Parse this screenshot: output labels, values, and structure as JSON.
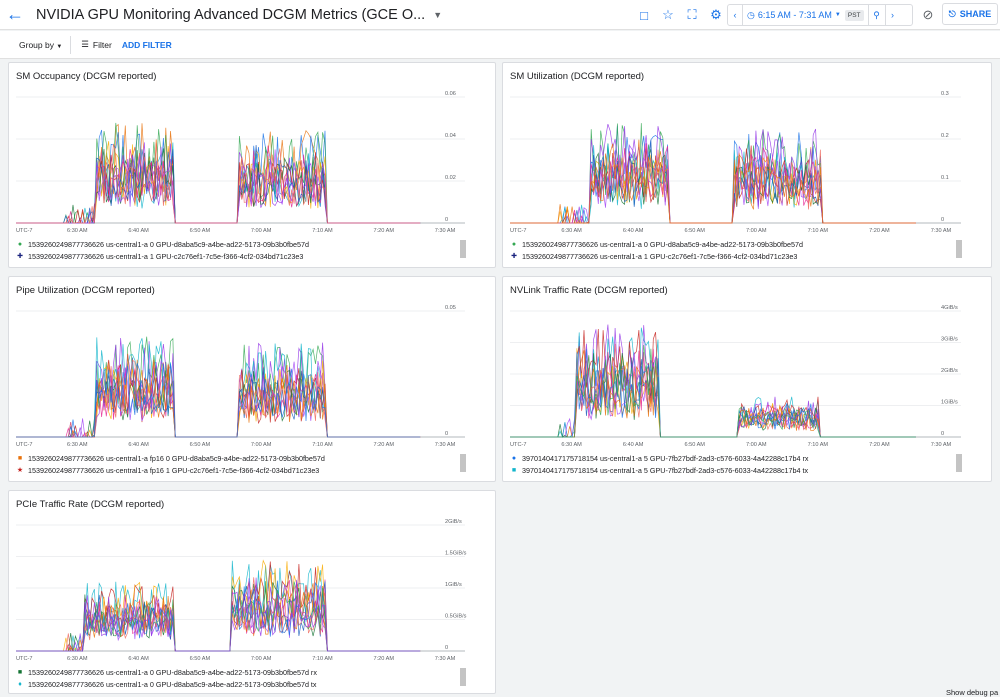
{
  "header": {
    "title": "NVIDIA GPU Monitoring Advanced DCGM Metrics (GCE O...",
    "time_range": "6:15 AM - 7:31 AM",
    "timezone": "PST",
    "share_label": "SHARE",
    "icons": [
      "arrow-back-icon",
      "comment-icon",
      "star-icon",
      "fullscreen-icon",
      "gear-icon",
      "chevron-left-icon",
      "clock-icon",
      "zoom-icon",
      "chevron-right-icon",
      "sync-off-icon",
      "share-icon"
    ]
  },
  "filterbar": {
    "group_by": "Group by",
    "filter": "Filter",
    "add_filter": "ADD FILTER"
  },
  "footer": {
    "debug": "Show debug pa"
  },
  "colors": {
    "accent": "#1a73e8"
  },
  "x_ticks": [
    "UTC-7",
    "6:30 AM",
    "6:40 AM",
    "6:50 AM",
    "7:00 AM",
    "7:10 AM",
    "7:20 AM",
    "7:30 AM"
  ],
  "charts": [
    {
      "title": "SM Occupancy (DCGM reported)",
      "y_ticks": [
        "0.06",
        "0.04",
        "0.02",
        "0"
      ],
      "legend": [
        {
          "label": "1539260249877736626 us-central1-a 0 GPU-d8aba5c9-a4be-ad22-5173-09b3b0fbe57d",
          "marker": "●",
          "color": "#34a853"
        },
        {
          "label": "1539260249877736626 us-central1-a 1 GPU-c2c76ef1-7c5e-f366-4cf2-034bd71c23e3",
          "marker": "✚",
          "color": "#1a237e"
        }
      ]
    },
    {
      "title": "SM Utilization (DCGM reported)",
      "y_ticks": [
        "0.3",
        "0.2",
        "0.1",
        "0"
      ],
      "legend": [
        {
          "label": "1539260249877736626 us-central1-a 0 GPU-d8aba5c9-a4be-ad22-5173-09b3b0fbe57d",
          "marker": "●",
          "color": "#34a853"
        },
        {
          "label": "1539260249877736626 us-central1-a 1 GPU-c2c76ef1-7c5e-f366-4cf2-034bd71c23e3",
          "marker": "✚",
          "color": "#1a237e"
        }
      ]
    },
    {
      "title": "Pipe Utilization (DCGM reported)",
      "y_ticks": [
        "0.05",
        "0"
      ],
      "legend": [
        {
          "label": "1539260249877736626 us-central1-a fp16 0 GPU-d8aba5c9-a4be-ad22-5173-09b3b0fbe57d",
          "marker": "■",
          "color": "#e8710a"
        },
        {
          "label": "1539260249877736626 us-central1-a fp16 1 GPU-c2c76ef1-7c5e-f366-4cf2-034bd71c23e3",
          "marker": "★",
          "color": "#c5221f"
        }
      ]
    },
    {
      "title": "NVLink Traffic Rate (DCGM reported)",
      "y_ticks": [
        "4GiB/s",
        "3GiB/s",
        "2GiB/s",
        "1GiB/s",
        "0"
      ],
      "legend": [
        {
          "label": "3970140417175718154 us-central1-a 5 GPU-7fb27bdf-2ad3-c576-6033-4a42288c17b4 rx",
          "marker": "●",
          "color": "#1a73e8"
        },
        {
          "label": "3970140417175718154 us-central1-a 5 GPU-7fb27bdf-2ad3-c576-6033-4a42288c17b4 tx",
          "marker": "■",
          "color": "#12b5cb"
        }
      ]
    },
    {
      "title": "PCIe Traffic Rate (DCGM reported)",
      "y_ticks": [
        "2GiB/s",
        "1.5GiB/s",
        "1GiB/s",
        "0.5GiB/s",
        "0"
      ],
      "legend": [
        {
          "label": "1539260249877736626 us-central1-a 0 GPU-d8aba5c9-a4be-ad22-5173-09b3b0fbe57d rx",
          "marker": "■",
          "color": "#137333"
        },
        {
          "label": "1539260249877736626 us-central1-a 0 GPU-d8aba5c9-a4be-ad22-5173-09b3b0fbe57d tx",
          "marker": "♦",
          "color": "#12b5cb"
        }
      ]
    }
  ]
}
